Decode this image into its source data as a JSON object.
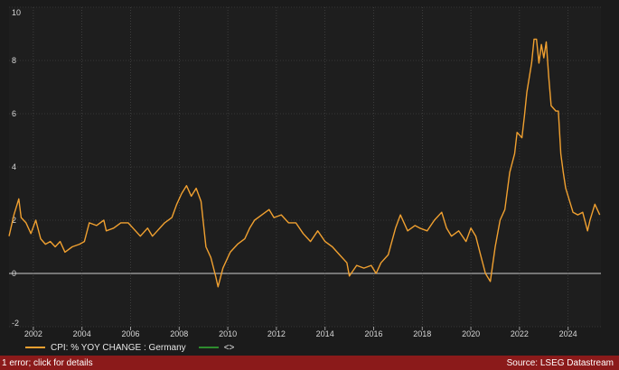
{
  "chart_data": {
    "type": "line",
    "title": "",
    "xlabel": "",
    "ylabel": "",
    "ylim": [
      -2,
      10
    ],
    "yticks": [
      -2,
      0,
      2,
      4,
      6,
      8,
      10
    ],
    "xlim": [
      2001.0,
      2025.35
    ],
    "xticks": [
      2002,
      2004,
      2006,
      2008,
      2010,
      2012,
      2014,
      2016,
      2018,
      2020,
      2022,
      2024
    ],
    "grid": true,
    "legend_position": "bottom-left",
    "series": [
      {
        "name": "CPI: % YOY CHANGE : Germany",
        "color": "#f0a030",
        "x": [
          2001.0,
          2001.2,
          2001.4,
          2001.5,
          2001.7,
          2001.9,
          2002.1,
          2002.3,
          2002.5,
          2002.7,
          2002.9,
          2003.1,
          2003.3,
          2003.6,
          2003.9,
          2004.1,
          2004.3,
          2004.6,
          2004.9,
          2005.0,
          2005.3,
          2005.6,
          2005.9,
          2006.1,
          2006.4,
          2006.7,
          2006.9,
          2007.1,
          2007.4,
          2007.7,
          2007.9,
          2008.1,
          2008.3,
          2008.5,
          2008.7,
          2008.9,
          2009.1,
          2009.3,
          2009.5,
          2009.6,
          2009.8,
          2010.1,
          2010.4,
          2010.7,
          2010.9,
          2011.1,
          2011.4,
          2011.7,
          2011.9,
          2012.2,
          2012.5,
          2012.8,
          2013.1,
          2013.4,
          2013.7,
          2014.0,
          2014.3,
          2014.6,
          2014.9,
          2015.0,
          2015.3,
          2015.6,
          2015.9,
          2016.1,
          2016.3,
          2016.6,
          2016.9,
          2017.1,
          2017.4,
          2017.7,
          2017.9,
          2018.2,
          2018.5,
          2018.8,
          2019.0,
          2019.2,
          2019.5,
          2019.8,
          2020.0,
          2020.2,
          2020.4,
          2020.6,
          2020.8,
          2021.0,
          2021.2,
          2021.4,
          2021.6,
          2021.8,
          2021.9,
          2022.1,
          2022.2,
          2022.3,
          2022.5,
          2022.6,
          2022.7,
          2022.8,
          2022.9,
          2023.0,
          2023.1,
          2023.2,
          2023.3,
          2023.5,
          2023.6,
          2023.7,
          2023.8,
          2023.9,
          2024.0,
          2024.2,
          2024.4,
          2024.6,
          2024.8,
          2024.9,
          2025.0,
          2025.1,
          2025.3
        ],
        "values": [
          1.4,
          2.2,
          2.8,
          2.1,
          1.9,
          1.5,
          2.0,
          1.3,
          1.1,
          1.2,
          1.0,
          1.2,
          0.8,
          1.0,
          1.1,
          1.2,
          1.9,
          1.8,
          2.0,
          1.6,
          1.7,
          1.9,
          1.9,
          1.7,
          1.4,
          1.7,
          1.4,
          1.6,
          1.9,
          2.1,
          2.6,
          3.0,
          3.3,
          2.9,
          3.2,
          2.7,
          1.0,
          0.6,
          -0.1,
          -0.5,
          0.2,
          0.8,
          1.1,
          1.3,
          1.7,
          2.0,
          2.2,
          2.4,
          2.1,
          2.2,
          1.9,
          1.9,
          1.5,
          1.2,
          1.6,
          1.2,
          1.0,
          0.7,
          0.4,
          -0.1,
          0.3,
          0.2,
          0.3,
          0.0,
          0.4,
          0.7,
          1.7,
          2.2,
          1.6,
          1.8,
          1.7,
          1.6,
          2.0,
          2.3,
          1.7,
          1.4,
          1.6,
          1.2,
          1.7,
          1.4,
          0.7,
          0.0,
          -0.3,
          1.0,
          2.0,
          2.4,
          3.8,
          4.5,
          5.3,
          5.1,
          5.9,
          6.8,
          7.9,
          8.8,
          8.8,
          7.9,
          8.6,
          8.1,
          8.7,
          7.4,
          6.3,
          6.1,
          6.1,
          4.5,
          3.8,
          3.2,
          2.9,
          2.3,
          2.2,
          2.3,
          1.6,
          2.0,
          2.3,
          2.6,
          2.2
        ]
      },
      {
        "name": "<>",
        "color": "#2e8b2e",
        "x": [],
        "values": []
      }
    ]
  },
  "status": {
    "error_text": "1 error; click for details",
    "source_text": "Source: LSEG Datastream"
  }
}
